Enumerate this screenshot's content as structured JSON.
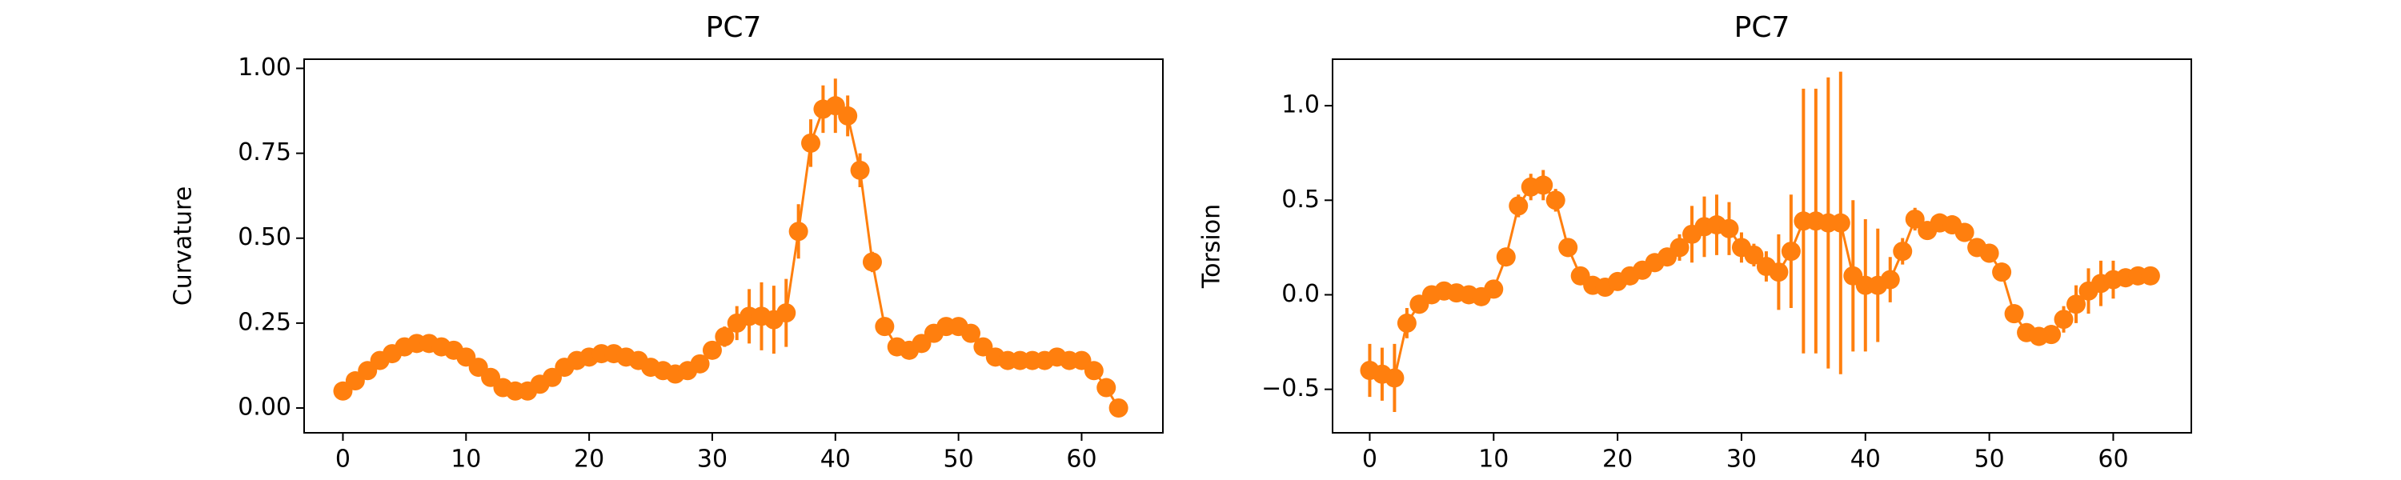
{
  "chart_data": [
    {
      "type": "line",
      "title": "PC7",
      "y_label": "Curvature",
      "color": "#ff7f0e",
      "x": [
        0,
        1,
        2,
        3,
        4,
        5,
        6,
        7,
        8,
        9,
        10,
        11,
        12,
        13,
        14,
        15,
        16,
        17,
        18,
        19,
        20,
        21,
        22,
        23,
        24,
        25,
        26,
        27,
        28,
        29,
        30,
        31,
        32,
        33,
        34,
        35,
        36,
        37,
        38,
        39,
        40,
        41,
        42,
        43,
        44,
        45,
        46,
        47,
        48,
        49,
        50,
        51,
        52,
        53,
        54,
        55,
        56,
        57,
        58,
        59,
        60,
        61,
        62,
        63
      ],
      "values": [
        0.05,
        0.08,
        0.11,
        0.14,
        0.16,
        0.18,
        0.19,
        0.19,
        0.18,
        0.17,
        0.15,
        0.12,
        0.09,
        0.06,
        0.05,
        0.05,
        0.07,
        0.09,
        0.12,
        0.14,
        0.15,
        0.16,
        0.16,
        0.15,
        0.14,
        0.12,
        0.11,
        0.1,
        0.11,
        0.13,
        0.17,
        0.21,
        0.25,
        0.27,
        0.27,
        0.26,
        0.28,
        0.52,
        0.78,
        0.88,
        0.89,
        0.86,
        0.7,
        0.43,
        0.24,
        0.18,
        0.17,
        0.19,
        0.22,
        0.24,
        0.24,
        0.22,
        0.18,
        0.15,
        0.14,
        0.14,
        0.14,
        0.14,
        0.15,
        0.14,
        0.14,
        0.11,
        0.06,
        0.0
      ],
      "errors": [
        0.01,
        0.01,
        0.01,
        0.01,
        0.01,
        0.01,
        0.01,
        0.01,
        0.01,
        0.01,
        0.01,
        0.01,
        0.01,
        0.01,
        0.01,
        0.01,
        0.01,
        0.01,
        0.01,
        0.01,
        0.01,
        0.01,
        0.01,
        0.01,
        0.01,
        0.01,
        0.01,
        0.01,
        0.01,
        0.02,
        0.02,
        0.03,
        0.05,
        0.08,
        0.1,
        0.1,
        0.1,
        0.08,
        0.07,
        0.07,
        0.08,
        0.06,
        0.05,
        0.03,
        0.02,
        0.01,
        0.01,
        0.01,
        0.01,
        0.01,
        0.01,
        0.01,
        0.01,
        0.01,
        0.01,
        0.01,
        0.01,
        0.01,
        0.01,
        0.01,
        0.01,
        0.01,
        0.01,
        0.01
      ],
      "xlim": [
        -3.15,
        66.6
      ],
      "xticks": [
        0,
        10,
        20,
        30,
        40,
        50,
        60
      ],
      "ylim": [
        -0.073,
        1.027
      ],
      "yticks": [
        {
          "value": 0,
          "label": "0.00"
        },
        {
          "value": 0.25,
          "label": "0.25"
        },
        {
          "value": 0.5,
          "label": "0.50"
        },
        {
          "value": 0.75,
          "label": "0.75"
        },
        {
          "value": 1,
          "label": "1.00"
        }
      ]
    },
    {
      "type": "line",
      "title": "PC7",
      "y_label": "Torsion",
      "color": "#ff7f0e",
      "x": [
        0,
        1,
        2,
        3,
        4,
        5,
        6,
        7,
        8,
        9,
        10,
        11,
        12,
        13,
        14,
        15,
        16,
        17,
        18,
        19,
        20,
        21,
        22,
        23,
        24,
        25,
        26,
        27,
        28,
        29,
        30,
        31,
        32,
        33,
        34,
        35,
        36,
        37,
        38,
        39,
        40,
        41,
        42,
        43,
        44,
        45,
        46,
        47,
        48,
        49,
        50,
        51,
        52,
        53,
        54,
        55,
        56,
        57,
        58,
        59,
        60,
        61,
        62,
        63
      ],
      "values": [
        -0.4,
        -0.42,
        -0.44,
        -0.15,
        -0.05,
        0.0,
        0.02,
        0.01,
        0.0,
        -0.01,
        0.03,
        0.2,
        0.47,
        0.57,
        0.58,
        0.5,
        0.25,
        0.1,
        0.05,
        0.04,
        0.07,
        0.1,
        0.13,
        0.17,
        0.2,
        0.25,
        0.32,
        0.36,
        0.37,
        0.35,
        0.25,
        0.21,
        0.15,
        0.12,
        0.23,
        0.39,
        0.39,
        0.38,
        0.38,
        0.1,
        0.05,
        0.05,
        0.08,
        0.23,
        0.4,
        0.34,
        0.38,
        0.37,
        0.33,
        0.25,
        0.22,
        0.12,
        -0.1,
        -0.2,
        -0.22,
        -0.21,
        -0.13,
        -0.05,
        0.02,
        0.06,
        0.08,
        0.09,
        0.1,
        0.1
      ],
      "errors": [
        0.14,
        0.14,
        0.18,
        0.08,
        0.05,
        0.03,
        0.03,
        0.03,
        0.03,
        0.04,
        0.04,
        0.05,
        0.06,
        0.07,
        0.08,
        0.06,
        0.05,
        0.04,
        0.03,
        0.03,
        0.04,
        0.05,
        0.05,
        0.05,
        0.05,
        0.07,
        0.15,
        0.16,
        0.16,
        0.14,
        0.08,
        0.06,
        0.08,
        0.2,
        0.3,
        0.7,
        0.7,
        0.77,
        0.8,
        0.4,
        0.35,
        0.3,
        0.12,
        0.07,
        0.06,
        0.05,
        0.05,
        0.05,
        0.05,
        0.05,
        0.05,
        0.05,
        0.05,
        0.05,
        0.05,
        0.05,
        0.07,
        0.1,
        0.12,
        0.12,
        0.1,
        0.05,
        0.04,
        0.03
      ],
      "xlim": [
        -3.0,
        66.3
      ],
      "xticks": [
        0,
        10,
        20,
        30,
        40,
        50,
        60
      ],
      "ylim": [
        -0.73,
        1.246
      ],
      "yticks": [
        {
          "value": -0.5,
          "label": "−0.5"
        },
        {
          "value": 0,
          "label": "0.0"
        },
        {
          "value": 0.5,
          "label": "0.5"
        },
        {
          "value": 1,
          "label": "1.0"
        }
      ]
    }
  ]
}
